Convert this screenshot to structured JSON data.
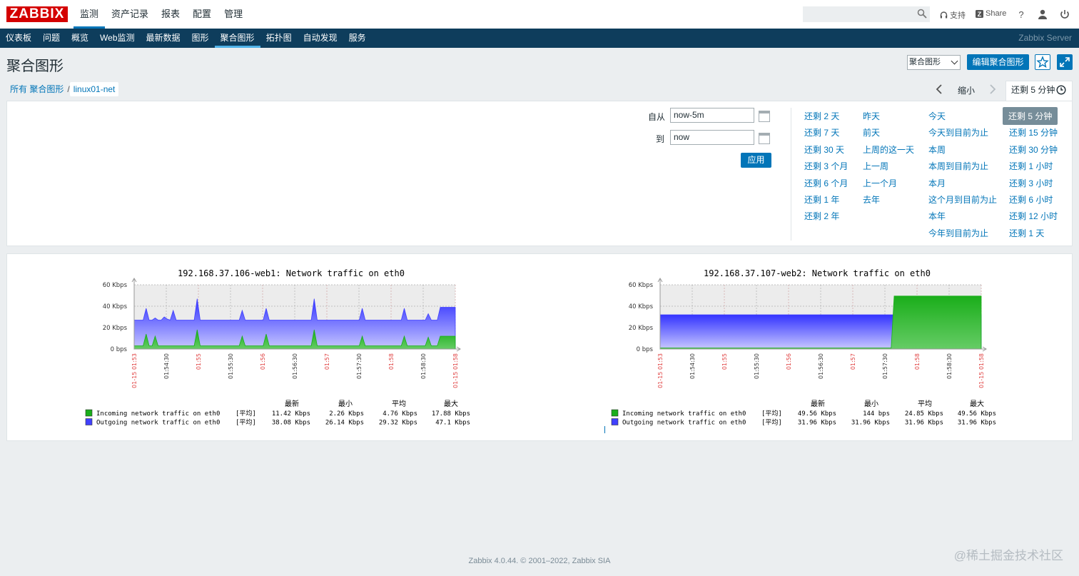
{
  "header": {
    "logo": "ZABBIX",
    "menu": [
      "监测",
      "资产记录",
      "报表",
      "配置",
      "管理"
    ],
    "active_menu": "监测",
    "search_placeholder": "",
    "support": "支持",
    "share": "Share"
  },
  "submenu": {
    "items": [
      "仪表板",
      "问题",
      "概览",
      "Web监测",
      "最新数据",
      "图形",
      "聚合图形",
      "拓扑图",
      "自动发现",
      "服务"
    ],
    "active": "聚合图形",
    "server": "Zabbix Server"
  },
  "page": {
    "title": "聚合图形",
    "select_value": "聚合图形",
    "edit_button": "编辑聚合图形"
  },
  "breadcrumb": {
    "all": "所有 聚合图形",
    "sep": "/",
    "current": "linux01-net"
  },
  "timenav": {
    "zoom": "缩小",
    "tab_label": "还剩 5 分钟"
  },
  "filter": {
    "from_label": "自从",
    "from_value": "now-5m",
    "to_label": "到",
    "to_value": "now",
    "apply": "应用",
    "col1": [
      "还剩 2 天",
      "还剩 7 天",
      "还剩 30 天",
      "还剩 3 个月",
      "还剩 6 个月",
      "还剩 1 年",
      "还剩 2 年"
    ],
    "col2": [
      "昨天",
      "前天",
      "上周的这一天",
      "上一周",
      "上一个月",
      "去年"
    ],
    "col3": [
      "今天",
      "今天到目前为止",
      "本周",
      "本周到目前为止",
      "本月",
      "这个月到目前为止",
      "本年",
      "今年到目前为止"
    ],
    "col4": [
      "还剩 5 分钟",
      "还剩 15 分钟",
      "还剩 30 分钟",
      "还剩 1 小时",
      "还剩 3 小时",
      "还剩 6 小时",
      "还剩 12 小时",
      "还剩 1 天"
    ],
    "selected": "还剩 5 分钟"
  },
  "legend_headers": [
    "最新",
    "最小",
    "平均",
    "最大"
  ],
  "chart_data": [
    {
      "type": "area",
      "title": "192.168.37.106-web1: Network traffic on eth0",
      "ylabel": "bps",
      "ylim": [
        0,
        60
      ],
      "y_ticks": [
        "60 Kbps",
        "40 Kbps",
        "20 Kbps",
        "0 bps"
      ],
      "x_ticks": [
        {
          "label": "01-15 01:53",
          "red": true
        },
        {
          "label": "01:54:30",
          "red": false
        },
        {
          "label": "01:55",
          "red": true
        },
        {
          "label": "01:55:30",
          "red": false
        },
        {
          "label": "01:56",
          "red": true
        },
        {
          "label": "01:56:30",
          "red": false
        },
        {
          "label": "01:57",
          "red": true
        },
        {
          "label": "01:57:30",
          "red": false
        },
        {
          "label": "01:58",
          "red": true
        },
        {
          "label": "01:58:30",
          "red": false
        },
        {
          "label": "01-15 01:58",
          "red": true
        }
      ],
      "series": [
        {
          "name": "Incoming network traffic on eth0",
          "color": "#1aae1a",
          "values": [
            3,
            3,
            3,
            3,
            14,
            3,
            3,
            12,
            3,
            3,
            3,
            3,
            3,
            3,
            3,
            3,
            3,
            3,
            3,
            3,
            3,
            18,
            3,
            3,
            3,
            3,
            3,
            3,
            3,
            3,
            3,
            3,
            3,
            3,
            3,
            3,
            12,
            3,
            3,
            3,
            3,
            3,
            3,
            3,
            14,
            3,
            3,
            3,
            3,
            3,
            3,
            3,
            3,
            3,
            3,
            3,
            3,
            3,
            3,
            3,
            18,
            3,
            3,
            3,
            3,
            3,
            3,
            3,
            3,
            3,
            3,
            3,
            3,
            3,
            3,
            3,
            12,
            3,
            3,
            3,
            3,
            3,
            3,
            3,
            3,
            3,
            3,
            3,
            3,
            3,
            12,
            3,
            3,
            3,
            3,
            3,
            3,
            3,
            11,
            3,
            3,
            3,
            12,
            12,
            12,
            12,
            12,
            12
          ]
        },
        {
          "name": "Outgoing network traffic on eth0",
          "color": "#4040ff",
          "values": [
            27,
            27,
            27,
            27,
            38,
            27,
            27,
            29,
            27,
            27,
            30,
            28,
            27,
            36,
            27,
            27,
            27,
            27,
            27,
            27,
            27,
            47,
            27,
            27,
            27,
            27,
            27,
            27,
            27,
            27,
            27,
            27,
            27,
            27,
            27,
            27,
            36,
            27,
            27,
            27,
            27,
            27,
            27,
            27,
            38,
            27,
            27,
            27,
            27,
            27,
            27,
            27,
            27,
            27,
            27,
            27,
            27,
            27,
            27,
            27,
            47,
            27,
            27,
            27,
            27,
            27,
            27,
            27,
            27,
            27,
            27,
            27,
            27,
            27,
            27,
            27,
            38,
            27,
            27,
            27,
            27,
            27,
            27,
            27,
            27,
            27,
            27,
            27,
            27,
            27,
            38,
            27,
            27,
            27,
            27,
            27,
            27,
            27,
            33,
            27,
            27,
            27,
            39,
            39,
            39,
            39,
            39,
            39
          ]
        }
      ],
      "legend": [
        {
          "name": "Incoming network traffic on eth0",
          "func": "[平均]",
          "last": "11.42 Kbps",
          "min": "2.26 Kbps",
          "avg": "4.76 Kbps",
          "max": "17.88 Kbps"
        },
        {
          "name": "Outgoing network traffic on eth0",
          "func": "[平均]",
          "last": "38.08 Kbps",
          "min": "26.14 Kbps",
          "avg": "29.32 Kbps",
          "max": "47.1 Kbps"
        }
      ]
    },
    {
      "type": "area",
      "title": "192.168.37.107-web2: Network traffic on eth0",
      "ylabel": "bps",
      "ylim": [
        0,
        60
      ],
      "y_ticks": [
        "60 Kbps",
        "40 Kbps",
        "20 Kbps",
        "0 bps"
      ],
      "x_ticks": [
        {
          "label": "01-15 01:53",
          "red": true
        },
        {
          "label": "01:54:30",
          "red": false
        },
        {
          "label": "01:55",
          "red": true
        },
        {
          "label": "01:55:30",
          "red": false
        },
        {
          "label": "01:56",
          "red": true
        },
        {
          "label": "01:56:30",
          "red": false
        },
        {
          "label": "01:57",
          "red": true
        },
        {
          "label": "01:57:30",
          "red": false
        },
        {
          "label": "01:58",
          "red": true
        },
        {
          "label": "01:58:30",
          "red": false
        },
        {
          "label": "01-15 01:58",
          "red": true
        }
      ],
      "series": [
        {
          "name": "Incoming network traffic on eth0",
          "color": "#1aae1a",
          "values": [
            1,
            1,
            1,
            1,
            1,
            1,
            1,
            1,
            1,
            1,
            1,
            1,
            1,
            1,
            1,
            1,
            1,
            1,
            1,
            1,
            1,
            1,
            1,
            1,
            1,
            1,
            1,
            1,
            1,
            1,
            1,
            1,
            1,
            1,
            1,
            1,
            1,
            1,
            1,
            1,
            1,
            1,
            1,
            1,
            1,
            1,
            1,
            1,
            1,
            1,
            1,
            1,
            1,
            1,
            1,
            1,
            1,
            1,
            1,
            1,
            1,
            1,
            1,
            1,
            1,
            1,
            1,
            1,
            1,
            1,
            1,
            1,
            1,
            1,
            1,
            1,
            1,
            1,
            49.5,
            49.5,
            49.5,
            49.5,
            49.5,
            49.5,
            49.5,
            49.5,
            49.5,
            49.5,
            49.5,
            49.5,
            49.5,
            49.5,
            49.5,
            49.5,
            49.5,
            49.5,
            49.5,
            49.5,
            49.5,
            49.5,
            49.5,
            49.5,
            49.5,
            49.5,
            49.5,
            49.5,
            49.5,
            49.5
          ]
        },
        {
          "name": "Outgoing network traffic on eth0",
          "color": "#4040ff",
          "values": [
            32,
            32,
            32,
            32,
            32,
            32,
            32,
            32,
            32,
            32,
            32,
            32,
            32,
            32,
            32,
            32,
            32,
            32,
            32,
            32,
            32,
            32,
            32,
            32,
            32,
            32,
            32,
            32,
            32,
            32,
            32,
            32,
            32,
            32,
            32,
            32,
            32,
            32,
            32,
            32,
            32,
            32,
            32,
            32,
            32,
            32,
            32,
            32,
            32,
            32,
            32,
            32,
            32,
            32,
            32,
            32,
            32,
            32,
            32,
            32,
            32,
            32,
            32,
            32,
            32,
            32,
            32,
            32,
            32,
            32,
            32,
            32,
            32,
            32,
            32,
            32,
            32,
            32,
            32,
            32,
            32,
            32,
            32,
            32,
            32,
            32,
            32,
            32,
            32,
            32,
            32,
            32,
            32,
            32,
            32,
            32,
            32,
            32,
            32,
            32,
            32,
            32,
            32,
            32,
            32,
            32,
            32,
            32
          ]
        }
      ],
      "legend": [
        {
          "name": "Incoming network traffic on eth0",
          "func": "[平均]",
          "last": "49.56 Kbps",
          "min": "144 bps",
          "avg": "24.85 Kbps",
          "max": "49.56 Kbps"
        },
        {
          "name": "Outgoing network traffic on eth0",
          "func": "[平均]",
          "last": "31.96 Kbps",
          "min": "31.96 Kbps",
          "avg": "31.96 Kbps",
          "max": "31.96 Kbps"
        }
      ]
    }
  ],
  "footer": {
    "text": "Zabbix 4.0.44. © 2001–2022, ",
    "link": "Zabbix SIA"
  },
  "watermark": "@稀土掘金技术社区"
}
